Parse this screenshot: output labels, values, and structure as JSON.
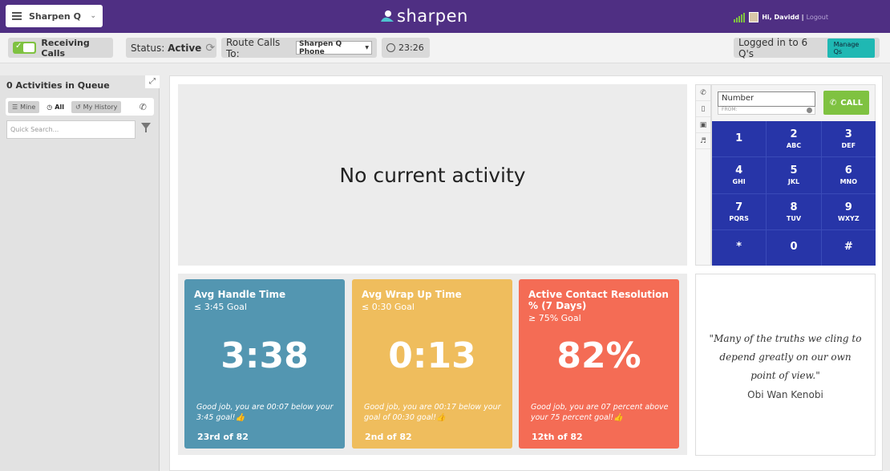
{
  "header": {
    "app_select": "Sharpen Q",
    "logo": "sharpen",
    "greeting": "Hi, Davidd |",
    "logout": "Logout"
  },
  "statusbar": {
    "receiving_calls": "Receiving Calls",
    "status_label": "Status:",
    "status_value": "Active",
    "route_label": "Route Calls To:",
    "route_value": "Sharpen Q Phone",
    "timer": "23:26",
    "logged_in": "Logged in to 6 Q's",
    "manage_btn": "Manage Qs"
  },
  "sidebar": {
    "title": "0 Activities in Queue",
    "tabs": {
      "mine": "Mine",
      "all": "All",
      "history": "My History"
    },
    "search_placeholder": "Quick Search..."
  },
  "activity": {
    "empty_text": "No current activity"
  },
  "dialer": {
    "number_placeholder": "Number",
    "from_label": "FROM:",
    "call_label": "CALL",
    "keys": [
      {
        "d": "1",
        "l": ""
      },
      {
        "d": "2",
        "l": "ABC"
      },
      {
        "d": "3",
        "l": "DEF"
      },
      {
        "d": "4",
        "l": "GHI"
      },
      {
        "d": "5",
        "l": "JKL"
      },
      {
        "d": "6",
        "l": "MNO"
      },
      {
        "d": "7",
        "l": "PQRS"
      },
      {
        "d": "8",
        "l": "TUV"
      },
      {
        "d": "9",
        "l": "WXYZ"
      },
      {
        "d": "*",
        "l": ""
      },
      {
        "d": "0",
        "l": ""
      },
      {
        "d": "#",
        "l": ""
      }
    ]
  },
  "stats": [
    {
      "title": "Avg Handle Time",
      "goal": "≤ 3:45 Goal",
      "value": "3:38",
      "message": "Good job, you are 00:07 below your 3:45 goal!👍",
      "rank": "23rd of 82",
      "color": "#5396b1"
    },
    {
      "title": "Avg Wrap Up Time",
      "goal": "≤ 0:30 Goal",
      "value": "0:13",
      "message": "Good job, you are 00:17 below your goal of 00:30 goal!👍",
      "rank": "2nd of 82",
      "color": "#efbd5d"
    },
    {
      "title": "Active Contact Resolution % (7 Days)",
      "goal": "≥ 75% Goal",
      "value": "82%",
      "message": "Good job, you are 07 percent above your 75 percent goal!👍",
      "rank": "12th of 82",
      "color": "#f46c55"
    }
  ],
  "quote": {
    "text": "\"Many of the truths we cling to depend greatly on our own point of view.\"",
    "author": "Obi Wan Kenobi"
  }
}
